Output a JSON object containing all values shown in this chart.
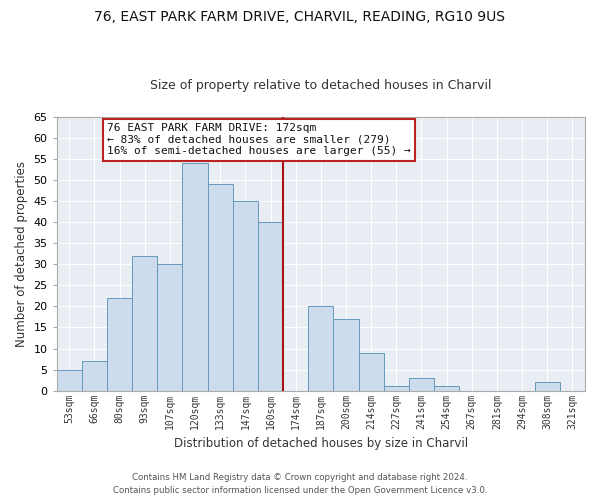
{
  "title": "76, EAST PARK FARM DRIVE, CHARVIL, READING, RG10 9US",
  "subtitle": "Size of property relative to detached houses in Charvil",
  "xlabel": "Distribution of detached houses by size in Charvil",
  "ylabel": "Number of detached properties",
  "bin_labels": [
    "53sqm",
    "66sqm",
    "80sqm",
    "93sqm",
    "107sqm",
    "120sqm",
    "133sqm",
    "147sqm",
    "160sqm",
    "174sqm",
    "187sqm",
    "200sqm",
    "214sqm",
    "227sqm",
    "241sqm",
    "254sqm",
    "267sqm",
    "281sqm",
    "294sqm",
    "308sqm",
    "321sqm"
  ],
  "bar_heights": [
    5,
    7,
    22,
    32,
    30,
    54,
    49,
    45,
    40,
    0,
    20,
    17,
    9,
    1,
    3,
    1,
    0,
    0,
    0,
    2,
    0
  ],
  "bar_color": "#ccdcec",
  "bar_edge_color": "#6699bb",
  "annotation_text": "76 EAST PARK FARM DRIVE: 172sqm\n← 83% of detached houses are smaller (279)\n16% of semi-detached houses are larger (55) →",
  "annotation_box_edge": "#bb2222",
  "ylim": [
    0,
    65
  ],
  "yticks": [
    0,
    5,
    10,
    15,
    20,
    25,
    30,
    35,
    40,
    45,
    50,
    55,
    60,
    65
  ],
  "footer_line1": "Contains HM Land Registry data © Crown copyright and database right 2024.",
  "footer_line2": "Contains public sector information licensed under the Open Government Licence v3.0.",
  "plot_bg_color": "#e8eef4",
  "grid_color": "#ffffff",
  "ref_line_color": "#aa1111"
}
